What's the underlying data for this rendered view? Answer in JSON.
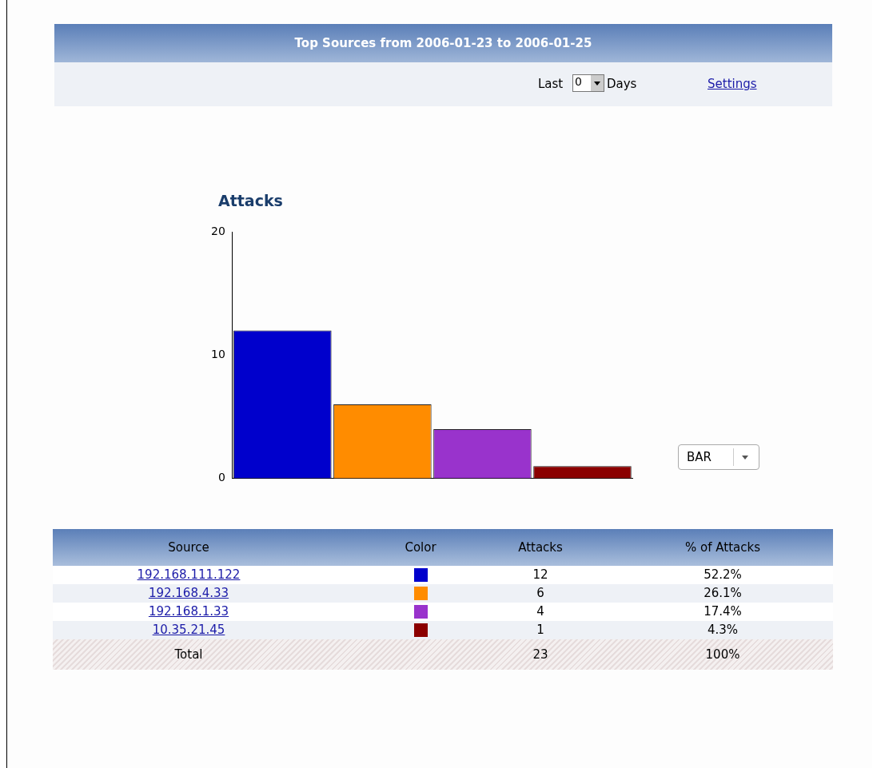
{
  "chart_data": {
    "type": "bar",
    "title": "Top Sources from 2006-01-23 to 2006-01-25",
    "ylabel": "Attacks",
    "categories": [
      null,
      null,
      null,
      null
    ],
    "values": [
      12,
      6,
      4,
      1
    ],
    "colors": [
      "#0000cc",
      "#ff8c00",
      "#9933cc",
      "#8b0000"
    ],
    "ylim": [
      0,
      20
    ],
    "yticks": [
      0,
      10,
      20
    ],
    "grid": false,
    "legend": false,
    "tick_labels": "y",
    "annotations": [
      "Last",
      "0",
      "Days",
      "Settings",
      "BAR",
      "Source",
      "Color",
      "Attacks",
      "% of Attacks",
      "192.168.111.122",
      "12",
      "52.2%",
      "192.168.4.33",
      "6",
      "26.1%",
      "192.168.1.33",
      "4",
      "17.4%",
      "10.35.21.45",
      "1",
      "4.3%",
      "Total",
      "23",
      "100%"
    ]
  }
}
